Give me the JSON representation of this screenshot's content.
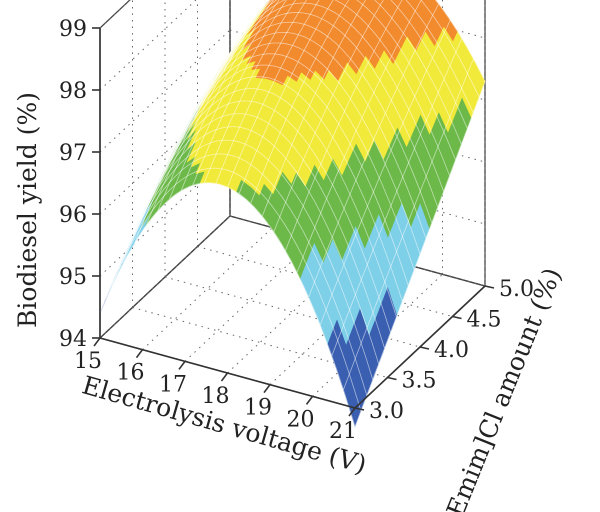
{
  "chart_data": {
    "type": "surface",
    "title": "",
    "xlabel": "Electrolysis voltage (V)",
    "ylabel": "[Emim]Cl amount (%)",
    "zlabel": "Biodiesel yield (%)",
    "x_ticks": [
      "15",
      "16",
      "17",
      "18",
      "19",
      "20",
      "21"
    ],
    "y_ticks": [
      "3.0",
      "3.5",
      "4.0",
      "4.5",
      "5.0"
    ],
    "z_ticks": [
      "94",
      "95",
      "96",
      "97",
      "98",
      "99"
    ],
    "xlim": [
      15,
      21
    ],
    "ylim": [
      3.0,
      5.0
    ],
    "zlim": [
      94,
      99
    ],
    "grid": true,
    "colormap": [
      "#3a5fb0",
      "#7ecfe8",
      "#6cb94a",
      "#f2ea3a",
      "#f28a2e",
      "#e3262d"
    ],
    "colormap_bands": [
      94,
      95,
      96,
      97,
      98,
      98.7,
      99
    ],
    "surface_samples": {
      "x": [
        15,
        18,
        21
      ],
      "y": [
        3.0,
        4.0,
        5.0
      ],
      "z": [
        [
          94.4,
          97.0,
          93.7
        ],
        [
          95.7,
          98.3,
          95.5
        ],
        [
          96.5,
          98.9,
          97.3
        ]
      ]
    }
  }
}
